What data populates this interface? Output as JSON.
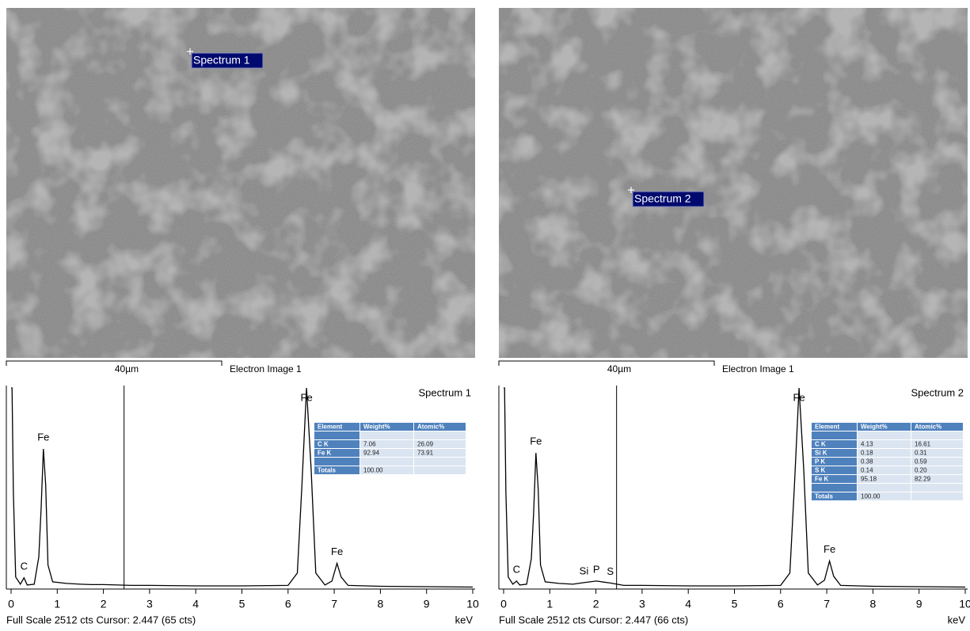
{
  "images": [
    {
      "marker": "Spectrum 1",
      "scale_bar": "40µm",
      "label": "Electron Image 1"
    },
    {
      "marker": "Spectrum 2",
      "scale_bar": "40µm",
      "label": "Electron Image 1"
    }
  ],
  "chart_data": [
    {
      "type": "line",
      "title": "Spectrum 1",
      "color": "#000000",
      "x": [
        0,
        0.02,
        0.05,
        0.1,
        0.2,
        0.28,
        0.35,
        0.5,
        0.6,
        0.65,
        0.7,
        0.75,
        0.8,
        0.9,
        1.2,
        1.5,
        1.74,
        2.01,
        2.31,
        2.6,
        3,
        4,
        5,
        6,
        6.2,
        6.3,
        6.4,
        6.5,
        6.6,
        6.8,
        6.95,
        7.06,
        7.15,
        7.3,
        8,
        9,
        10
      ],
      "values": [
        2512,
        2512,
        1200,
        150,
        60,
        140,
        50,
        60,
        400,
        1000,
        1750,
        1300,
        300,
        90,
        70,
        60,
        55,
        55,
        50,
        45,
        45,
        40,
        40,
        45,
        200,
        1300,
        2512,
        1500,
        200,
        50,
        100,
        320,
        150,
        45,
        35,
        30,
        25
      ],
      "xlim": [
        0,
        10
      ],
      "ylim": [
        0,
        2512
      ],
      "xticks": [
        0,
        1,
        2,
        3,
        4,
        5,
        6,
        7,
        8,
        9,
        10
      ],
      "x_label": "keV",
      "cursor": 2.447,
      "footer": "Full Scale 2512 cts Cursor: 2.447  (65 cts)",
      "annotations": [
        {
          "text": "C",
          "x": 0.28
        },
        {
          "text": "Fe",
          "x": 0.7
        },
        {
          "text": "Fe",
          "x": 6.4
        },
        {
          "text": "Fe",
          "x": 7.06
        }
      ],
      "table": {
        "header": [
          "Element",
          "Weight%",
          "Atomic%"
        ],
        "rows": [
          [
            "C K",
            "7.06",
            "26.09"
          ],
          [
            "Fe K",
            "92.94",
            "73.91"
          ]
        ],
        "totals": [
          "Totals",
          "100.00"
        ]
      }
    },
    {
      "type": "line",
      "title": "Spectrum 2",
      "color": "#000000",
      "x": [
        0,
        0.02,
        0.05,
        0.1,
        0.2,
        0.28,
        0.35,
        0.5,
        0.6,
        0.65,
        0.7,
        0.75,
        0.8,
        0.9,
        1.2,
        1.5,
        1.74,
        2.01,
        2.31,
        2.6,
        3,
        4,
        5,
        6,
        6.2,
        6.3,
        6.4,
        6.5,
        6.6,
        6.8,
        6.95,
        7.06,
        7.15,
        7.3,
        8,
        9,
        10
      ],
      "values": [
        2512,
        2512,
        1200,
        150,
        60,
        100,
        50,
        60,
        380,
        950,
        1700,
        1250,
        300,
        90,
        70,
        60,
        80,
        100,
        75,
        45,
        45,
        40,
        40,
        45,
        200,
        1300,
        2512,
        1500,
        200,
        50,
        110,
        350,
        160,
        45,
        35,
        30,
        25
      ],
      "xlim": [
        0,
        10
      ],
      "ylim": [
        0,
        2512
      ],
      "xticks": [
        0,
        1,
        2,
        3,
        4,
        5,
        6,
        7,
        8,
        9,
        10
      ],
      "x_label": "keV",
      "cursor": 2.447,
      "footer": "Full Scale 2512 cts Cursor: 2.447  (66 cts)",
      "annotations": [
        {
          "text": "C",
          "x": 0.28
        },
        {
          "text": "Fe",
          "x": 0.7
        },
        {
          "text": "Si",
          "x": 1.74
        },
        {
          "text": "P",
          "x": 2.01
        },
        {
          "text": "S",
          "x": 2.31
        },
        {
          "text": "Fe",
          "x": 6.4
        },
        {
          "text": "Fe",
          "x": 7.06
        }
      ],
      "table": {
        "header": [
          "Element",
          "Weight%",
          "Atomic%"
        ],
        "rows": [
          [
            "C K",
            "4.13",
            "16.61"
          ],
          [
            "Si K",
            "0.18",
            "0.31"
          ],
          [
            "P K",
            "0.38",
            "0.59"
          ],
          [
            "S K",
            "0.14",
            "0.20"
          ],
          [
            "Fe K",
            "95.18",
            "82.29"
          ]
        ],
        "totals": [
          "Totals",
          "100.00"
        ]
      }
    }
  ]
}
